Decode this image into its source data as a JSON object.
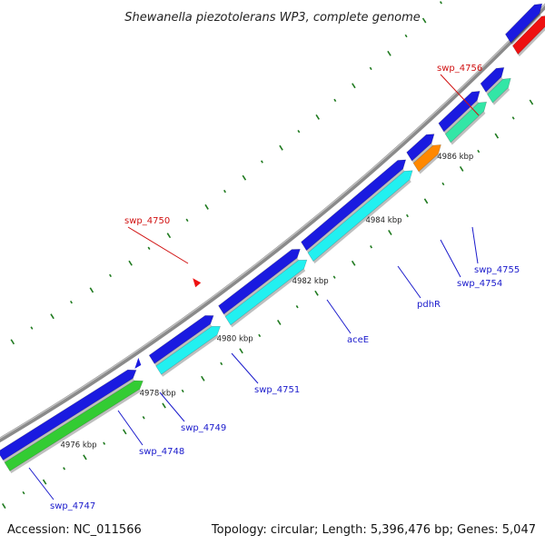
{
  "title": "Shewanella piezotolerans WP3, complete genome",
  "footer": {
    "accession": "Accession: NC_011566",
    "summary": "Topology: circular; Length: 5,396,476 bp; Genes: 5,047"
  },
  "colors": {
    "backbone": "#8a8a8a",
    "tick": "#1f7a1f",
    "label_blue": "#1a1acc",
    "label_red": "#d11111",
    "gene_blue": "#1a1ae0",
    "gene_cyan": "#22f0f0",
    "gene_teal": "#33e6a6",
    "gene_green": "#33cc33",
    "gene_orange": "#ff8800",
    "gene_red": "#ee1111"
  },
  "scale": {
    "labels": [
      {
        "text": "4976 kbp",
        "kbp": 4976
      },
      {
        "text": "4978 kbp",
        "kbp": 4978
      },
      {
        "text": "4980 kbp",
        "kbp": 4980
      },
      {
        "text": "4982 kbp",
        "kbp": 4982
      },
      {
        "text": "4984 kbp",
        "kbp": 4984
      },
      {
        "text": "4986 kbp",
        "kbp": 4986
      }
    ]
  },
  "genes": [
    {
      "name": "swp_4747",
      "lane": "inner",
      "strand": "+",
      "color": "gene_green",
      "start": 4974.5,
      "end": 4977.9
    },
    {
      "name": "swp_4747_top",
      "lane": "outer",
      "strand": "+",
      "color": "gene_blue",
      "start": 4974.5,
      "end": 4977.9
    },
    {
      "name": "swp_4748",
      "lane": "outer",
      "strand": "+",
      "color": "gene_blue",
      "start": 4978.0,
      "end": 4978.1
    },
    {
      "name": "swp_4749",
      "lane": "inner",
      "strand": "+",
      "color": "gene_cyan",
      "start": 4978.3,
      "end": 4979.9
    },
    {
      "name": "swp_4749_top",
      "lane": "outer",
      "strand": "+",
      "color": "gene_blue",
      "start": 4978.3,
      "end": 4979.9
    },
    {
      "name": "swp_4751",
      "lane": "inner",
      "strand": "+",
      "color": "gene_cyan",
      "start": 4980.1,
      "end": 4982.2
    },
    {
      "name": "swp_4751_top",
      "lane": "outer",
      "strand": "+",
      "color": "gene_blue",
      "start": 4980.1,
      "end": 4982.2
    },
    {
      "name": "aceE",
      "lane": "inner",
      "strand": "+",
      "color": "gene_cyan",
      "start": 4982.3,
      "end": 4985.1
    },
    {
      "name": "aceE_top",
      "lane": "outer",
      "strand": "+",
      "color": "gene_blue",
      "start": 4982.3,
      "end": 4985.1
    },
    {
      "name": "pdhR",
      "lane": "inner",
      "strand": "+",
      "color": "gene_orange",
      "start": 4985.2,
      "end": 4985.9
    },
    {
      "name": "pdhR_top",
      "lane": "outer",
      "strand": "+",
      "color": "gene_blue",
      "start": 4985.2,
      "end": 4985.9
    },
    {
      "name": "swp_4754",
      "lane": "inner",
      "strand": "+",
      "color": "gene_teal",
      "start": 4986.1,
      "end": 4987.2
    },
    {
      "name": "swp_4754_top",
      "lane": "outer",
      "strand": "+",
      "color": "gene_blue",
      "start": 4986.1,
      "end": 4987.2
    },
    {
      "name": "swp_4755",
      "lane": "inner",
      "strand": "+",
      "color": "gene_teal",
      "start": 4987.3,
      "end": 4987.9
    },
    {
      "name": "swp_4755_top",
      "lane": "outer",
      "strand": "+",
      "color": "gene_blue",
      "start": 4987.3,
      "end": 4987.9
    },
    {
      "name": "swp_4756",
      "lane": "far_inner",
      "strand": "+",
      "color": "gene_red",
      "start": 4988.3,
      "end": 4989.3
    },
    {
      "name": "swp_4756_top",
      "lane": "far_outer",
      "strand": "+",
      "color": "gene_blue",
      "start": 4988.3,
      "end": 4989.3
    },
    {
      "name": "swp_4750",
      "lane": "mid",
      "strand": "+",
      "color": "gene_red",
      "start": 4980.0,
      "end": 4980.05
    }
  ],
  "labels": [
    {
      "text": "swp_4747",
      "color": "label_blue"
    },
    {
      "text": "swp_4748",
      "color": "label_blue"
    },
    {
      "text": "swp_4749",
      "color": "label_blue"
    },
    {
      "text": "swp_4751",
      "color": "label_blue"
    },
    {
      "text": "aceE",
      "color": "label_blue"
    },
    {
      "text": "pdhR",
      "color": "label_blue"
    },
    {
      "text": "swp_4754",
      "color": "label_blue"
    },
    {
      "text": "swp_4755",
      "color": "label_blue"
    },
    {
      "text": "swp_4750",
      "color": "label_red"
    },
    {
      "text": "swp_4756",
      "color": "label_red"
    }
  ]
}
